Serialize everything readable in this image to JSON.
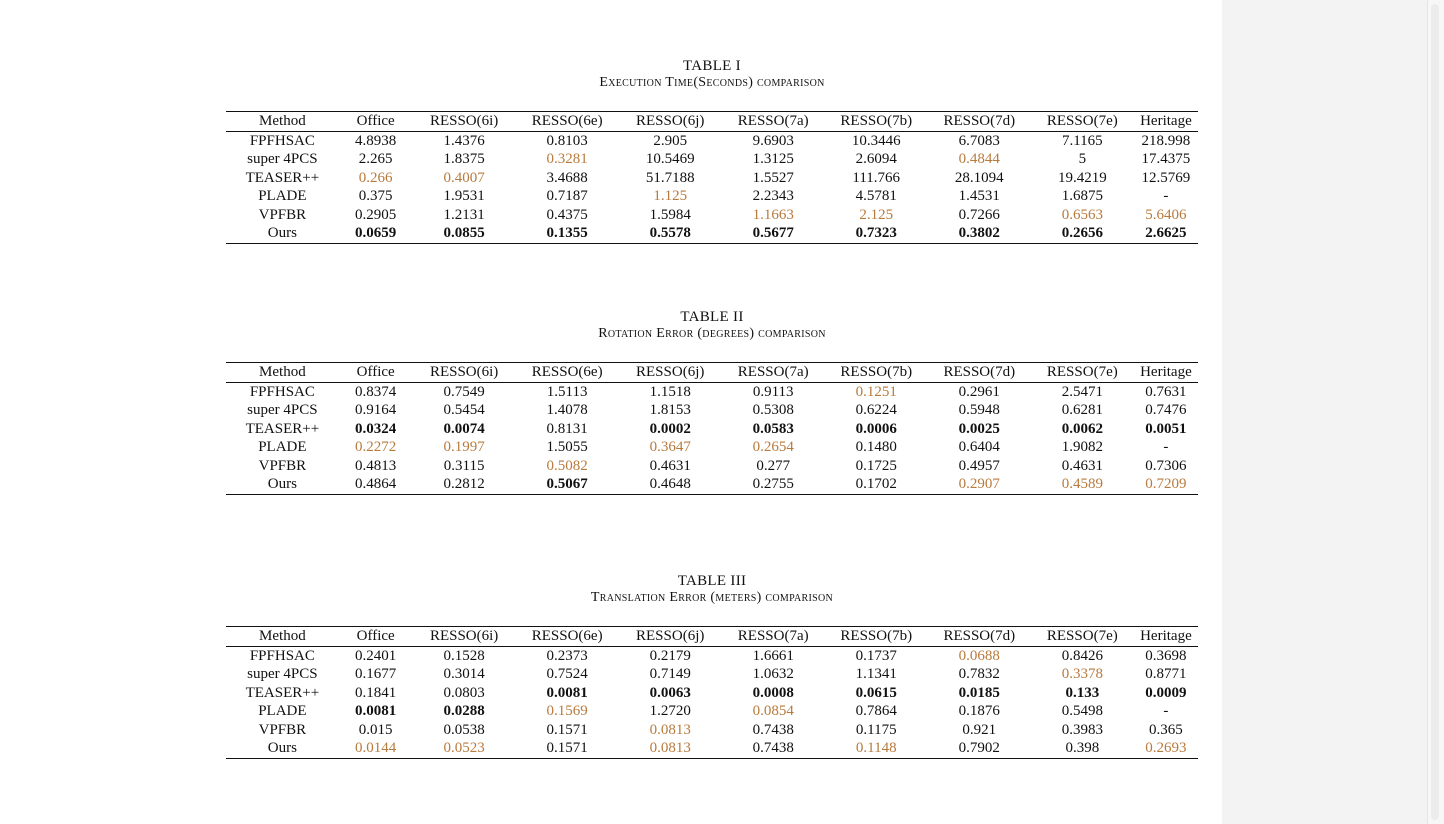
{
  "colors": {
    "highlight": "#b87a3d",
    "best": "#111111",
    "page": "#ffffff",
    "viewer_bg": "#f3f3f3"
  },
  "tables": [
    {
      "number": "TABLE I",
      "title": "Execution Time(Seconds) comparison",
      "columns": [
        "Method",
        "Office",
        "RESSO(6i)",
        "RESSO(6e)",
        "RESSO(6j)",
        "RESSO(7a)",
        "RESSO(7b)",
        "RESSO(7d)",
        "RESSO(7e)",
        "Heritage"
      ],
      "rows": [
        {
          "method": "FPFHSAC",
          "values": [
            "4.8938",
            "1.4376",
            "0.8103",
            "2.905",
            "9.6903",
            "10.3446",
            "6.7083",
            "7.1165",
            "218.998"
          ],
          "styles": [
            "",
            "",
            "",
            "",
            "",
            "",
            "",
            "",
            ""
          ]
        },
        {
          "method": "super 4PCS",
          "values": [
            "2.265",
            "1.8375",
            "0.3281",
            "10.5469",
            "1.3125",
            "2.6094",
            "0.4844",
            "5",
            "17.4375"
          ],
          "styles": [
            "",
            "",
            "o",
            "",
            "",
            "",
            "o",
            "",
            ""
          ]
        },
        {
          "method": "TEASER++",
          "values": [
            "0.266",
            "0.4007",
            "3.4688",
            "51.7188",
            "1.5527",
            "111.766",
            "28.1094",
            "19.4219",
            "12.5769"
          ],
          "styles": [
            "o",
            "o",
            "",
            "",
            "",
            "",
            "",
            "",
            ""
          ]
        },
        {
          "method": "PLADE",
          "values": [
            "0.375",
            "1.9531",
            "0.7187",
            "1.125",
            "2.2343",
            "4.5781",
            "1.4531",
            "1.6875",
            "-"
          ],
          "styles": [
            "",
            "",
            "",
            "o",
            "",
            "",
            "",
            "",
            ""
          ]
        },
        {
          "method": "VPFBR",
          "values": [
            "0.2905",
            "1.2131",
            "0.4375",
            "1.5984",
            "1.1663",
            "2.125",
            "0.7266",
            "0.6563",
            "5.6406"
          ],
          "styles": [
            "",
            "",
            "",
            "",
            "o",
            "o",
            "",
            "o",
            "o"
          ]
        },
        {
          "method": "Ours",
          "values": [
            "0.0659",
            "0.0855",
            "0.1355",
            "0.5578",
            "0.5677",
            "0.7323",
            "0.3802",
            "0.2656",
            "2.6625"
          ],
          "styles": [
            "b",
            "b",
            "b",
            "b",
            "b",
            "b",
            "b",
            "b",
            "b"
          ]
        }
      ]
    },
    {
      "number": "TABLE II",
      "title": "Rotation Error (degrees) comparison",
      "columns": [
        "Method",
        "Office",
        "RESSO(6i)",
        "RESSO(6e)",
        "RESSO(6j)",
        "RESSO(7a)",
        "RESSO(7b)",
        "RESSO(7d)",
        "RESSO(7e)",
        "Heritage"
      ],
      "rows": [
        {
          "method": "FPFHSAC",
          "values": [
            "0.8374",
            "0.7549",
            "1.5113",
            "1.1518",
            "0.9113",
            "0.1251",
            "0.2961",
            "2.5471",
            "0.7631"
          ],
          "styles": [
            "",
            "",
            "",
            "",
            "",
            "o",
            "",
            "",
            ""
          ]
        },
        {
          "method": "super 4PCS",
          "values": [
            "0.9164",
            "0.5454",
            "1.4078",
            "1.8153",
            "0.5308",
            "0.6224",
            "0.5948",
            "0.6281",
            "0.7476"
          ],
          "styles": [
            "",
            "",
            "",
            "",
            "",
            "",
            "",
            "",
            ""
          ]
        },
        {
          "method": "TEASER++",
          "values": [
            "0.0324",
            "0.0074",
            "0.8131",
            "0.0002",
            "0.0583",
            "0.0006",
            "0.0025",
            "0.0062",
            "0.0051"
          ],
          "styles": [
            "b",
            "b",
            "",
            "b",
            "b",
            "b",
            "b",
            "b",
            "b"
          ]
        },
        {
          "method": "PLADE",
          "values": [
            "0.2272",
            "0.1997",
            "1.5055",
            "0.3647",
            "0.2654",
            "0.1480",
            "0.6404",
            "1.9082",
            "-"
          ],
          "styles": [
            "o",
            "o",
            "",
            "o",
            "o",
            "",
            "",
            "",
            ""
          ]
        },
        {
          "method": "VPFBR",
          "values": [
            "0.4813",
            "0.3115",
            "0.5082",
            "0.4631",
            "0.277",
            "0.1725",
            "0.4957",
            "0.4631",
            "0.7306"
          ],
          "styles": [
            "",
            "",
            "o",
            "",
            "",
            "",
            "",
            "",
            ""
          ]
        },
        {
          "method": "Ours",
          "values": [
            "0.4864",
            "0.2812",
            "0.5067",
            "0.4648",
            "0.2755",
            "0.1702",
            "0.2907",
            "0.4589",
            "0.7209"
          ],
          "styles": [
            "",
            "",
            "b",
            "",
            "",
            "",
            "o",
            "o",
            "o"
          ]
        }
      ]
    },
    {
      "number": "TABLE III",
      "title": "Translation Error (meters) comparison",
      "columns": [
        "Method",
        "Office",
        "RESSO(6i)",
        "RESSO(6e)",
        "RESSO(6j)",
        "RESSO(7a)",
        "RESSO(7b)",
        "RESSO(7d)",
        "RESSO(7e)",
        "Heritage"
      ],
      "rows": [
        {
          "method": "FPFHSAC",
          "values": [
            "0.2401",
            "0.1528",
            "0.2373",
            "0.2179",
            "1.6661",
            "0.1737",
            "0.0688",
            "0.8426",
            "0.3698"
          ],
          "styles": [
            "",
            "",
            "",
            "",
            "",
            "",
            "o",
            "",
            ""
          ]
        },
        {
          "method": "super 4PCS",
          "values": [
            "0.1677",
            "0.3014",
            "0.7524",
            "0.7149",
            "1.0632",
            "1.1341",
            "0.7832",
            "0.3378",
            "0.8771"
          ],
          "styles": [
            "",
            "",
            "",
            "",
            "",
            "",
            "",
            "o",
            ""
          ]
        },
        {
          "method": "TEASER++",
          "values": [
            "0.1841",
            "0.0803",
            "0.0081",
            "0.0063",
            "0.0008",
            "0.0615",
            "0.0185",
            "0.133",
            "0.0009"
          ],
          "styles": [
            "",
            "",
            "b",
            "b",
            "b",
            "b",
            "b",
            "b",
            "b"
          ]
        },
        {
          "method": "PLADE",
          "values": [
            "0.0081",
            "0.0288",
            "0.1569",
            "1.2720",
            "0.0854",
            "0.7864",
            "0.1876",
            "0.5498",
            "-"
          ],
          "styles": [
            "b",
            "b",
            "o",
            "",
            "o",
            "",
            "",
            "",
            ""
          ]
        },
        {
          "method": "VPFBR",
          "values": [
            "0.015",
            "0.0538",
            "0.1571",
            "0.0813",
            "0.7438",
            "0.1175",
            "0.921",
            "0.3983",
            "0.365"
          ],
          "styles": [
            "",
            "",
            "",
            "o",
            "",
            "",
            "",
            "",
            ""
          ]
        },
        {
          "method": "Ours",
          "values": [
            "0.0144",
            "0.0523",
            "0.1571",
            "0.0813",
            "0.7438",
            "0.1148",
            "0.7902",
            "0.398",
            "0.2693"
          ],
          "styles": [
            "o",
            "o",
            "",
            "o",
            "",
            "o",
            "",
            "",
            "o"
          ]
        }
      ]
    }
  ]
}
